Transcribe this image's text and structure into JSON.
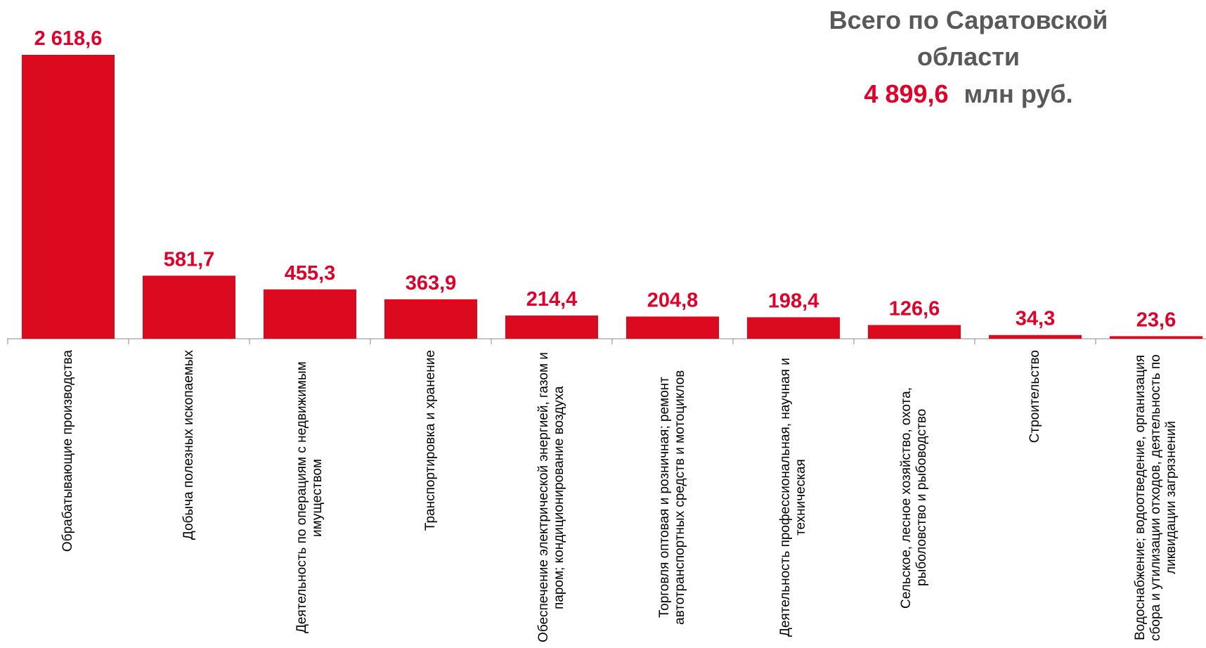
{
  "chart_data": {
    "type": "bar",
    "title_lines": [
      "Всего по Саратовской",
      "области"
    ],
    "total": "4 899,6",
    "unit": "млн руб.",
    "categories": [
      "Обрабатывающие производства",
      "Добыча полезных ископаемых",
      "Деятельность по операциям с недвижимым имуществом",
      "Транспортировка и хранение",
      "Обеспечение электрической энергией, газом и паром; кондиционирование воздуха",
      "Торговля оптовая и розничная; ремонт автотранспортных средств и мотоциклов",
      "Деятельность профессиональная, научная и техническая",
      "Сельское, лесное хозяйство, охота, рыболовство и рыбоводство",
      "Строительство",
      "Водоснабжение; водоотведение, организация сбора и утилизации отходов, деятельность по ликвидации загрязнений"
    ],
    "values": [
      2618.6,
      581.7,
      455.3,
      363.9,
      214.4,
      204.8,
      198.4,
      126.6,
      34.3,
      23.6
    ],
    "value_labels": [
      "2 618,6",
      "581,7",
      "455,3",
      "363,9",
      "214,4",
      "204,8",
      "198,4",
      "126,6",
      "34,3",
      "23,6"
    ],
    "color": "#dc0a1e",
    "label_color": "#e0002a"
  }
}
